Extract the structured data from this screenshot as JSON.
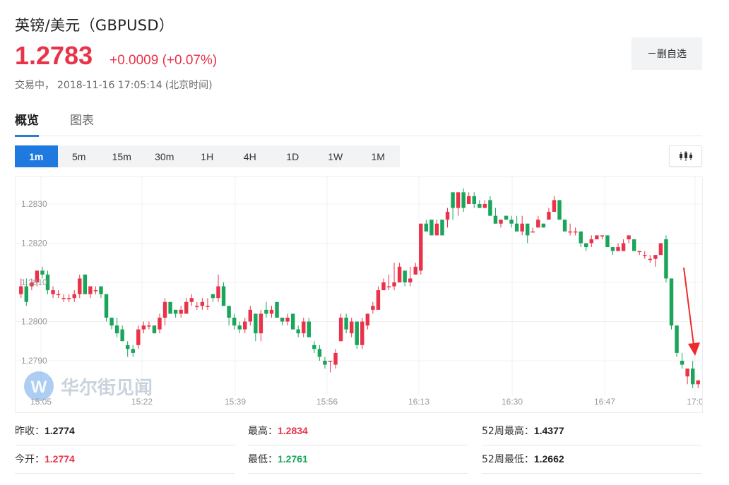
{
  "header": {
    "title": "英镑/美元（GBPUSD）",
    "price": "1.2783",
    "change": "+0.0009 (+0.07%)",
    "status": "交易中，",
    "timestamp": "2018-11-16 17:05:14",
    "timezone": "(北京时间)",
    "watch_button": "－删自选"
  },
  "tabs": [
    {
      "label": "概览",
      "active": true
    },
    {
      "label": "图表",
      "active": false
    }
  ],
  "periods": [
    "1m",
    "5m",
    "15m",
    "30m",
    "1H",
    "4H",
    "1D",
    "1W",
    "1M"
  ],
  "active_period": "1m",
  "watermark": "华尔街见闻",
  "colors": {
    "up": "#e8334a",
    "down": "#1aa55b",
    "accent": "#1f7ae0"
  },
  "chart_data": {
    "type": "candlestick",
    "title": "",
    "xlabel": "",
    "ylabel": "",
    "y_ticks": [
      "1.2790",
      "1.2800",
      "1.2810",
      "1.2820",
      "1.2830"
    ],
    "x_ticks": [
      "15:05",
      "15:22",
      "15:39",
      "15:56",
      "16:13",
      "16:30",
      "16:47",
      "17:0"
    ],
    "ylim": [
      1.2782,
      1.2842
    ],
    "candles": [
      [
        1.2807,
        1.2811,
        1.2806,
        1.2809
      ],
      [
        1.2809,
        1.2811,
        1.2804,
        1.2805
      ],
      [
        1.2809,
        1.2811,
        1.2808,
        1.281
      ],
      [
        1.281,
        1.2813,
        1.2809,
        1.2813
      ],
      [
        1.2813,
        1.2814,
        1.2811,
        1.2812
      ],
      [
        1.2812,
        1.2813,
        1.2807,
        1.2808
      ],
      [
        1.2807,
        1.2809,
        1.2806,
        1.2808
      ],
      [
        1.2807,
        1.2808,
        1.2806,
        1.2807
      ],
      [
        1.2806,
        1.2807,
        1.2805,
        1.2806
      ],
      [
        1.2806,
        1.2807,
        1.2805,
        1.2806
      ],
      [
        1.2806,
        1.2808,
        1.2805,
        1.2807
      ],
      [
        1.2807,
        1.2812,
        1.2806,
        1.2811
      ],
      [
        1.2812,
        1.2812,
        1.2807,
        1.2807
      ],
      [
        1.2807,
        1.2809,
        1.2806,
        1.2809
      ],
      [
        1.2808,
        1.2809,
        1.2807,
        1.2808
      ],
      [
        1.2809,
        1.2809,
        1.2806,
        1.2807
      ],
      [
        1.2807,
        1.2807,
        1.28,
        1.2801
      ],
      [
        1.2801,
        1.2801,
        1.2798,
        1.2799
      ],
      [
        1.2799,
        1.2801,
        1.2796,
        1.2797
      ],
      [
        1.2798,
        1.2799,
        1.2795,
        1.2795
      ],
      [
        1.2794,
        1.2795,
        1.2791,
        1.2793
      ],
      [
        1.2793,
        1.2794,
        1.2791,
        1.2792
      ],
      [
        1.2794,
        1.2799,
        1.2793,
        1.2798
      ],
      [
        1.2798,
        1.28,
        1.2797,
        1.2799
      ],
      [
        1.2799,
        1.28,
        1.2798,
        1.2799
      ],
      [
        1.2799,
        1.2799,
        1.2797,
        1.2797
      ],
      [
        1.2798,
        1.2802,
        1.2797,
        1.2801
      ],
      [
        1.2801,
        1.2806,
        1.2799,
        1.2805
      ],
      [
        1.2805,
        1.2805,
        1.2802,
        1.2802
      ],
      [
        1.2803,
        1.2803,
        1.2801,
        1.2802
      ],
      [
        1.2802,
        1.2804,
        1.2801,
        1.2803
      ],
      [
        1.2802,
        1.2806,
        1.2802,
        1.2805
      ],
      [
        1.2805,
        1.2807,
        1.2804,
        1.2806
      ],
      [
        1.2804,
        1.2805,
        1.2803,
        1.2804
      ],
      [
        1.2804,
        1.2806,
        1.2803,
        1.2805
      ],
      [
        1.2804,
        1.2806,
        1.2803,
        1.2804
      ],
      [
        1.2807,
        1.2807,
        1.2805,
        1.2806
      ],
      [
        1.2806,
        1.2812,
        1.2805,
        1.2809
      ],
      [
        1.2809,
        1.281,
        1.2804,
        1.2804
      ],
      [
        1.2804,
        1.2804,
        1.2799,
        1.2801
      ],
      [
        1.2801,
        1.2802,
        1.2798,
        1.2799
      ],
      [
        1.2799,
        1.28,
        1.2797,
        1.2798
      ],
      [
        1.2798,
        1.2801,
        1.2797,
        1.28
      ],
      [
        1.28,
        1.2804,
        1.2799,
        1.2803
      ],
      [
        1.2802,
        1.2802,
        1.2795,
        1.2797
      ],
      [
        1.2797,
        1.2803,
        1.2795,
        1.2802
      ],
      [
        1.2803,
        1.2805,
        1.2801,
        1.2802
      ],
      [
        1.2802,
        1.2804,
        1.2801,
        1.2803
      ],
      [
        1.2805,
        1.2805,
        1.2801,
        1.2801
      ],
      [
        1.2801,
        1.2801,
        1.2799,
        1.28
      ],
      [
        1.28,
        1.2802,
        1.2799,
        1.2801
      ],
      [
        1.2802,
        1.2802,
        1.2798,
        1.2798
      ],
      [
        1.2798,
        1.2799,
        1.2796,
        1.2797
      ],
      [
        1.2797,
        1.2801,
        1.2796,
        1.28
      ],
      [
        1.28,
        1.2801,
        1.2796,
        1.2796
      ],
      [
        1.2794,
        1.2795,
        1.2792,
        1.2793
      ],
      [
        1.2793,
        1.2794,
        1.279,
        1.2791
      ],
      [
        1.279,
        1.2791,
        1.2788,
        1.2789
      ],
      [
        1.279,
        1.279,
        1.2787,
        1.279
      ],
      [
        1.2789,
        1.2793,
        1.2788,
        1.2792
      ],
      [
        1.2795,
        1.2802,
        1.2795,
        1.2801
      ],
      [
        1.2801,
        1.2802,
        1.2797,
        1.2798
      ],
      [
        1.2797,
        1.2801,
        1.2796,
        1.28
      ],
      [
        1.28,
        1.28,
        1.2793,
        1.2794
      ],
      [
        1.2794,
        1.2801,
        1.2793,
        1.28
      ],
      [
        1.2799,
        1.2802,
        1.2798,
        1.2802
      ],
      [
        1.2803,
        1.2805,
        1.2802,
        1.2804
      ],
      [
        1.2803,
        1.2809,
        1.2803,
        1.2808
      ],
      [
        1.2808,
        1.2811,
        1.2808,
        1.281
      ],
      [
        1.2809,
        1.2812,
        1.2808,
        1.2809
      ],
      [
        1.2809,
        1.2815,
        1.2808,
        1.281
      ],
      [
        1.281,
        1.2815,
        1.281,
        1.2814
      ],
      [
        1.2813,
        1.2813,
        1.2809,
        1.281
      ],
      [
        1.281,
        1.2814,
        1.2809,
        1.2811
      ],
      [
        1.2812,
        1.2815,
        1.2812,
        1.2814
      ],
      [
        1.2813,
        1.2825,
        1.2812,
        1.2825
      ],
      [
        1.2825,
        1.2826,
        1.2823,
        1.2823
      ],
      [
        1.2826,
        1.2826,
        1.2822,
        1.2822
      ],
      [
        1.2822,
        1.2826,
        1.2822,
        1.2825
      ],
      [
        1.2826,
        1.2826,
        1.2822,
        1.2822
      ],
      [
        1.2826,
        1.2829,
        1.2824,
        1.2828
      ],
      [
        1.2833,
        1.2833,
        1.2826,
        1.2829
      ],
      [
        1.2829,
        1.2833,
        1.2827,
        1.2833
      ],
      [
        1.2833,
        1.2834,
        1.2828,
        1.2829
      ],
      [
        1.283,
        1.2833,
        1.283,
        1.2832
      ],
      [
        1.2832,
        1.2833,
        1.2829,
        1.283
      ],
      [
        1.283,
        1.2831,
        1.2829,
        1.2829
      ],
      [
        1.2829,
        1.2831,
        1.2829,
        1.283
      ],
      [
        1.2831,
        1.2832,
        1.2827,
        1.2827
      ],
      [
        1.2827,
        1.2829,
        1.2825,
        1.2825
      ],
      [
        1.2825,
        1.2826,
        1.2824,
        1.2826
      ],
      [
        1.2827,
        1.2827,
        1.2826,
        1.2826
      ],
      [
        1.2826,
        1.2827,
        1.2824,
        1.2825
      ],
      [
        1.2825,
        1.2827,
        1.2823,
        1.2823
      ],
      [
        1.2823,
        1.2827,
        1.2822,
        1.2825
      ],
      [
        1.2825,
        1.2825,
        1.282,
        1.2822
      ],
      [
        1.2823,
        1.2824,
        1.2823,
        1.2823
      ],
      [
        1.2824,
        1.2827,
        1.2824,
        1.2826
      ],
      [
        1.2825,
        1.2825,
        1.2824,
        1.2824
      ],
      [
        1.2826,
        1.2829,
        1.2826,
        1.2828
      ],
      [
        1.2828,
        1.2832,
        1.2828,
        1.2831
      ],
      [
        1.2831,
        1.2831,
        1.2826,
        1.2826
      ],
      [
        1.2826,
        1.2826,
        1.2823,
        1.2823
      ],
      [
        1.2823,
        1.2825,
        1.2822,
        1.2823
      ],
      [
        1.2823,
        1.2824,
        1.2822,
        1.2823
      ],
      [
        1.2823,
        1.2823,
        1.2819,
        1.282
      ],
      [
        1.282,
        1.282,
        1.2818,
        1.2819
      ],
      [
        1.282,
        1.2822,
        1.2819,
        1.2821
      ],
      [
        1.2821,
        1.2822,
        1.2821,
        1.2822
      ],
      [
        1.2822,
        1.2822,
        1.2821,
        1.2822
      ],
      [
        1.2822,
        1.2822,
        1.2819,
        1.2819
      ],
      [
        1.2819,
        1.2819,
        1.2817,
        1.2818
      ],
      [
        1.2818,
        1.282,
        1.2818,
        1.2819
      ],
      [
        1.2818,
        1.2821,
        1.2818,
        1.282
      ],
      [
        1.2821,
        1.2822,
        1.282,
        1.2822
      ],
      [
        1.2821,
        1.2821,
        1.2818,
        1.2818
      ],
      [
        1.2818,
        1.2818,
        1.2817,
        1.2818
      ],
      [
        1.2817,
        1.2818,
        1.2816,
        1.2817
      ],
      [
        1.2816,
        1.2817,
        1.2815,
        1.2816
      ],
      [
        1.2816,
        1.2817,
        1.2814,
        1.2817
      ],
      [
        1.2817,
        1.282,
        1.2817,
        1.282
      ],
      [
        1.2821,
        1.2822,
        1.281,
        1.2811
      ],
      [
        1.2811,
        1.2811,
        1.2798,
        1.2799
      ],
      [
        1.2799,
        1.2799,
        1.2791,
        1.2792
      ],
      [
        1.279,
        1.2792,
        1.2788,
        1.2789
      ],
      [
        1.2786,
        1.2788,
        1.2784,
        1.2788
      ],
      [
        1.2788,
        1.279,
        1.2783,
        1.2784
      ],
      [
        1.2784,
        1.2785,
        1.2783,
        1.2785
      ]
    ]
  },
  "stats": [
    {
      "label": "昨收：",
      "value": "1.2774",
      "color": "black"
    },
    {
      "label": "最高：",
      "value": "1.2834",
      "color": "red"
    },
    {
      "label": "52周最高：",
      "value": "1.4377",
      "color": "black"
    },
    {
      "label": "今开：",
      "value": "1.2774",
      "color": "red"
    },
    {
      "label": "最低：",
      "value": "1.2761",
      "color": "green"
    },
    {
      "label": "52周最低：",
      "value": "1.2662",
      "color": "black"
    }
  ]
}
